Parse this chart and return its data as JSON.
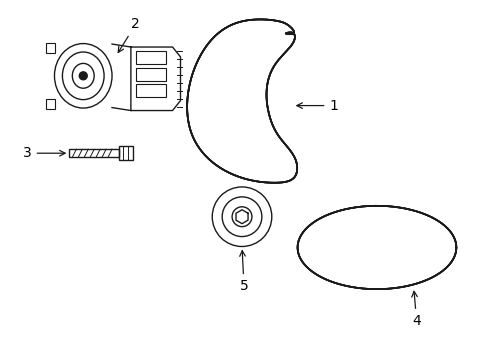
{
  "background_color": "#ffffff",
  "line_color": "#1a1a1a",
  "lw": 1.0,
  "belt_offsets": [
    -0.008,
    -0.003,
    0.003,
    0.008
  ],
  "belt4_offsets": [
    -0.009,
    -0.003,
    0.003,
    0.009
  ],
  "label_fontsize": 10
}
